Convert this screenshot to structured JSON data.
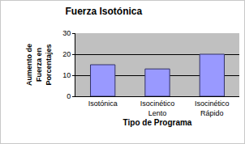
{
  "chart_data": {
    "type": "bar",
    "title": "Fuerza Isotónica",
    "x_label": "Tipo de Programa",
    "y_label": "Aumento de Fuerza en Porcentajes",
    "categories": [
      "Isotónica",
      "Isocinético Lento",
      "Isocinético Rápido"
    ],
    "values": [
      15,
      13,
      20
    ],
    "color": "#9999ff",
    "ylim": [
      0,
      30
    ],
    "yticks": [
      0,
      10,
      20,
      30
    ],
    "grid": true
  }
}
